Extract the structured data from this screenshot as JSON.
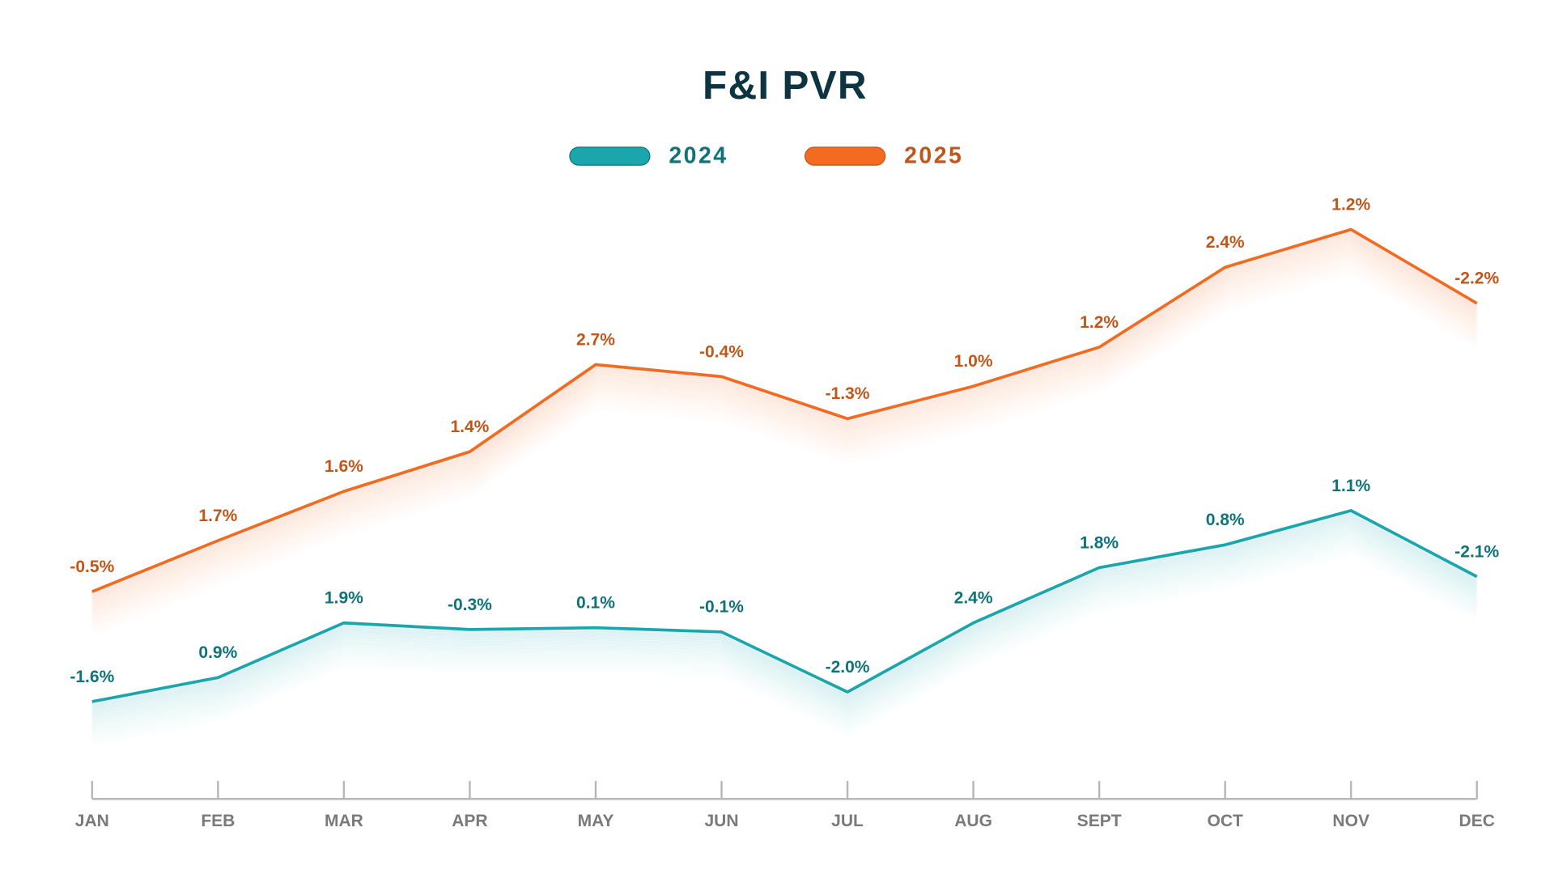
{
  "chart_data": {
    "type": "line",
    "title": "F&I PVR",
    "categories": [
      "JAN",
      "FEB",
      "MAR",
      "APR",
      "MAY",
      "JUN",
      "JUL",
      "AUG",
      "SEPT",
      "OCT",
      "NOV",
      "DEC"
    ],
    "ylim": [
      0,
      100
    ],
    "series": [
      {
        "name": "2024",
        "color": "#1ba6ae",
        "label_color": "#0f7379",
        "values": [
          16.2,
          20.2,
          29.3,
          28.2,
          28.5,
          27.8,
          17.8,
          29.3,
          38.5,
          42.3,
          48,
          37
        ],
        "data_labels": [
          "-1.6%",
          "0.9%",
          "1.9%",
          "-0.3%",
          "0.1%",
          "-0.1%",
          "-2.0%",
          "2.4%",
          "1.8%",
          "0.8%",
          "1.1%",
          "-2.1%"
        ]
      },
      {
        "name": "2025",
        "color": "#f26b21",
        "label_color": "#c1561a",
        "values": [
          34.5,
          43,
          51.2,
          57.8,
          72.3,
          70.3,
          63.3,
          68.7,
          75.2,
          88.5,
          94.8,
          82.5
        ],
        "data_labels": [
          "-0.5%",
          "1.7%",
          "1.6%",
          "1.4%",
          "2.7%",
          "-0.4%",
          "-1.3%",
          "1.0%",
          "1.2%",
          "2.4%",
          "1.2%",
          "-2.2%"
        ]
      }
    ]
  }
}
